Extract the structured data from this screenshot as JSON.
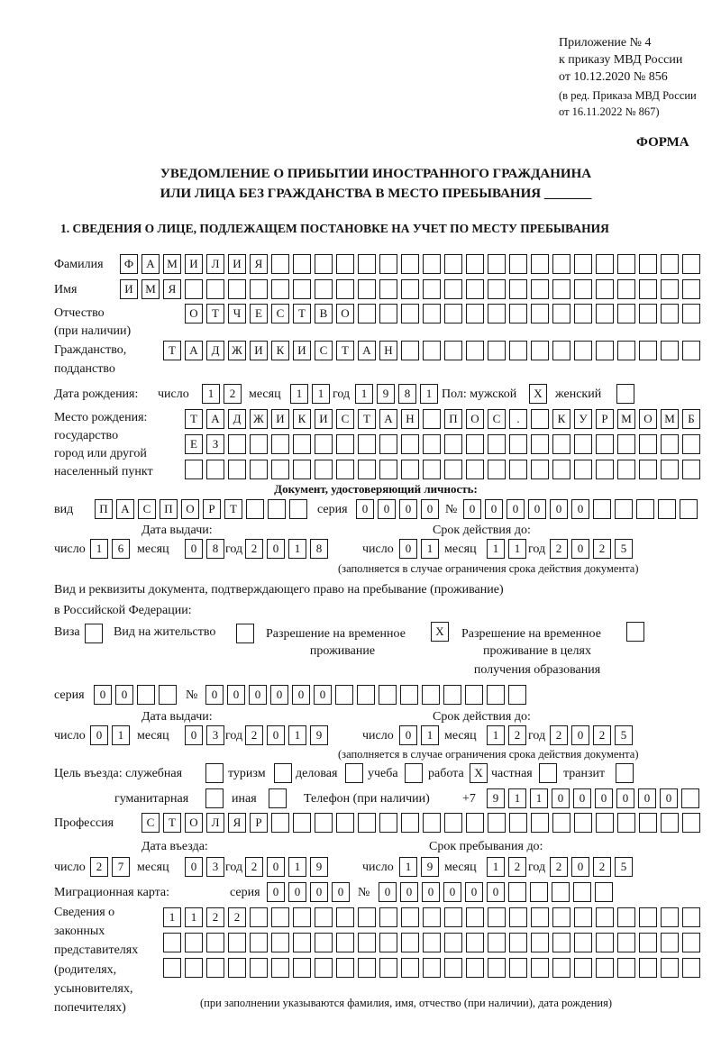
{
  "header": {
    "appendix": "Приложение № 4",
    "order": "к приказу МВД России",
    "order_date": "от 10.12.2020 № 856",
    "edit1": "(в ред. Приказа МВД России",
    "edit2": "от 16.11.2022 № 867)",
    "form": "ФОРМА",
    "title1": "УВЕДОМЛЕНИЕ О ПРИБЫТИИ ИНОСТРАННОГО ГРАЖДАНИНА",
    "title2": "ИЛИ ЛИЦА БЕЗ ГРАЖДАНСТВА В МЕСТО ПРЕБЫВАНИЯ _______",
    "section1": "1. СВЕДЕНИЯ О ЛИЦЕ, ПОДЛЕЖАЩЕМ ПОСТАНОВКЕ НА УЧЕТ ПО МЕСТУ ПРЕБЫВАНИЯ"
  },
  "labels": {
    "surname": "Фамилия",
    "name": "Имя",
    "patronymic1": "Отчество",
    "patronymic2": "(при наличии)",
    "citizenship1": "Гражданство,",
    "citizenship2": "подданство",
    "birth_date": "Дата рождения:",
    "day": "число",
    "month": "месяц",
    "year": "год",
    "sex": "Пол: мужской",
    "female": "женский",
    "birthplace1": "Место рождения:",
    "birthplace2": "государство",
    "birthplace3": "город или другой",
    "birthplace4": "населенный пункт",
    "id_doc": "Документ, удостоверяющий личность:",
    "kind": "вид",
    "series": "серия",
    "number": "№",
    "issue_date": "Дата выдачи:",
    "valid_until": "Срок действия до:",
    "validity_note": "(заполняется в случае ограничения срока действия документа)",
    "permit1": "Вид и реквизиты документа, подтверждающего право на пребывание (проживание)",
    "permit2": "в Российской Федерации:",
    "visa": "Виза",
    "residence": "Вид на жительство",
    "temp1": "Разрешение на временное",
    "temp2": "проживание",
    "edu1": "Разрешение на временное",
    "edu2": "проживание в целях",
    "edu3": "получения образования",
    "purpose": "Цель въезда: служебная",
    "tourism": "туризм",
    "business": "деловая",
    "study": "учеба",
    "work": "работа",
    "private": "частная",
    "transit": "транзит",
    "humanitarian": "гуманитарная",
    "other": "иная",
    "phone": "Телефон (при наличии)",
    "phone_prefix": "+7",
    "profession": "Профессия",
    "entry_date": "Дата въезда:",
    "stay_until": "Срок пребывания до:",
    "migration_card": "Миграционная карта:",
    "reps1": "Сведения о",
    "reps2": "законных",
    "reps3": "представителях",
    "reps4": "(родителях,",
    "reps5": "усыновителях,",
    "reps6": "попечителях)",
    "reps_note": "(при заполнении указываются фамилия, имя, отчество (при наличии), дата рождения)"
  },
  "fields": {
    "surname": [
      "Ф",
      "А",
      "М",
      "И",
      "Л",
      "И",
      "Я",
      "",
      "",
      "",
      "",
      "",
      "",
      "",
      "",
      "",
      "",
      "",
      "",
      "",
      "",
      "",
      "",
      "",
      "",
      "",
      ""
    ],
    "name": [
      "И",
      "М",
      "Я",
      "",
      "",
      "",
      "",
      "",
      "",
      "",
      "",
      "",
      "",
      "",
      "",
      "",
      "",
      "",
      "",
      "",
      "",
      "",
      "",
      "",
      "",
      "",
      ""
    ],
    "patronymic": [
      "О",
      "Т",
      "Ч",
      "Е",
      "С",
      "Т",
      "В",
      "О",
      "",
      "",
      "",
      "",
      "",
      "",
      "",
      "",
      "",
      "",
      "",
      "",
      "",
      "",
      "",
      ""
    ],
    "citizenship": [
      "Т",
      "А",
      "Д",
      "Ж",
      "И",
      "К",
      "И",
      "С",
      "Т",
      "А",
      "Н",
      "",
      "",
      "",
      "",
      "",
      "",
      "",
      "",
      "",
      "",
      "",
      "",
      "",
      ""
    ],
    "birth_day": [
      "1",
      "2"
    ],
    "birth_month": [
      "1",
      "1"
    ],
    "birth_year": [
      "1",
      "9",
      "8",
      "1"
    ],
    "sex_male": [
      "X"
    ],
    "sex_female": [
      ""
    ],
    "birthplace1": [
      "Т",
      "А",
      "Д",
      "Ж",
      "И",
      "К",
      "И",
      "С",
      "Т",
      "А",
      "Н",
      "",
      "П",
      "О",
      "С",
      ".",
      "",
      "К",
      "У",
      "Р",
      "М",
      "О",
      "М",
      "Б"
    ],
    "birthplace2": [
      "Е",
      "З",
      "",
      "",
      "",
      "",
      "",
      "",
      "",
      "",
      "",
      "",
      "",
      "",
      "",
      "",
      "",
      "",
      "",
      "",
      "",
      "",
      "",
      ""
    ],
    "birthplace3": [
      "",
      "",
      "",
      "",
      "",
      "",
      "",
      "",
      "",
      "",
      "",
      "",
      "",
      "",
      "",
      "",
      "",
      "",
      "",
      "",
      "",
      "",
      "",
      ""
    ],
    "id_kind": [
      "П",
      "А",
      "С",
      "П",
      "О",
      "Р",
      "Т",
      "",
      "",
      ""
    ],
    "id_series": [
      "0",
      "0",
      "0",
      "0"
    ],
    "id_number": [
      "0",
      "0",
      "0",
      "0",
      "0",
      "0",
      "",
      "",
      "",
      "",
      ""
    ],
    "id_issue_day": [
      "1",
      "6"
    ],
    "id_issue_month": [
      "0",
      "8"
    ],
    "id_issue_year": [
      "2",
      "0",
      "1",
      "8"
    ],
    "id_valid_day": [
      "0",
      "1"
    ],
    "id_valid_month": [
      "1",
      "1"
    ],
    "id_valid_year": [
      "2",
      "0",
      "2",
      "5"
    ],
    "visa": [
      ""
    ],
    "residence": [
      ""
    ],
    "temp_residence": [
      "X"
    ],
    "edu_residence": [
      ""
    ],
    "permit_series": [
      "0",
      "0",
      "",
      ""
    ],
    "permit_number": [
      "0",
      "0",
      "0",
      "0",
      "0",
      "0",
      "",
      "",
      "",
      "",
      "",
      "",
      "",
      "",
      ""
    ],
    "permit_issue_day": [
      "0",
      "1"
    ],
    "permit_issue_month": [
      "0",
      "3"
    ],
    "permit_issue_year": [
      "2",
      "0",
      "1",
      "9"
    ],
    "permit_valid_day": [
      "0",
      "1"
    ],
    "permit_valid_month": [
      "1",
      "2"
    ],
    "permit_valid_year": [
      "2",
      "0",
      "2",
      "5"
    ],
    "p_official": [
      ""
    ],
    "p_tourism": [
      ""
    ],
    "p_business": [
      ""
    ],
    "p_study": [
      ""
    ],
    "p_work": [
      "X"
    ],
    "p_private": [
      ""
    ],
    "p_transit": [
      ""
    ],
    "p_humanitarian": [
      ""
    ],
    "p_other": [
      ""
    ],
    "phone": [
      "9",
      "1",
      "1",
      "0",
      "0",
      "0",
      "0",
      "0",
      "0",
      ""
    ],
    "profession": [
      "С",
      "Т",
      "О",
      "Л",
      "Я",
      "Р",
      "",
      "",
      "",
      "",
      "",
      "",
      "",
      "",
      "",
      "",
      "",
      "",
      "",
      "",
      "",
      "",
      "",
      "",
      "",
      ""
    ],
    "entry_day": [
      "2",
      "7"
    ],
    "entry_month": [
      "0",
      "3"
    ],
    "entry_year": [
      "2",
      "0",
      "1",
      "9"
    ],
    "stay_day": [
      "1",
      "9"
    ],
    "stay_month": [
      "1",
      "2"
    ],
    "stay_year": [
      "2",
      "0",
      "2",
      "5"
    ],
    "mc_series": [
      "0",
      "0",
      "0",
      "0"
    ],
    "mc_number": [
      "0",
      "0",
      "0",
      "0",
      "0",
      "0",
      "",
      "",
      "",
      "",
      ""
    ],
    "reps1": [
      "1",
      "1",
      "2",
      "2",
      "",
      "",
      "",
      "",
      "",
      "",
      "",
      "",
      "",
      "",
      "",
      "",
      "",
      "",
      "",
      "",
      "",
      "",
      "",
      "",
      ""
    ],
    "reps2": [
      "",
      "",
      "",
      "",
      "",
      "",
      "",
      "",
      "",
      "",
      "",
      "",
      "",
      "",
      "",
      "",
      "",
      "",
      "",
      "",
      "",
      "",
      "",
      "",
      ""
    ],
    "reps3": [
      "",
      "",
      "",
      "",
      "",
      "",
      "",
      "",
      "",
      "",
      "",
      "",
      "",
      "",
      "",
      "",
      "",
      "",
      "",
      "",
      "",
      "",
      "",
      "",
      ""
    ]
  }
}
